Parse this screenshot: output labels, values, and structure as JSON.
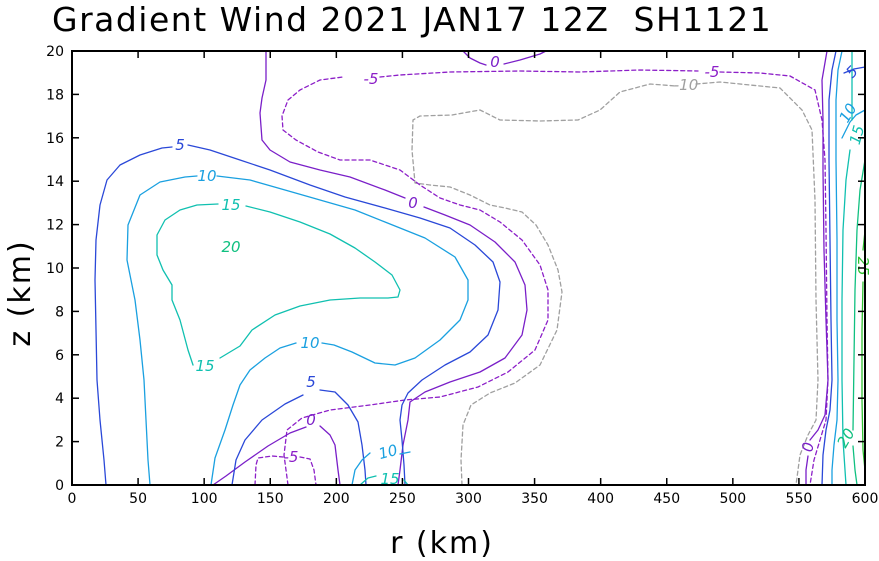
{
  "chart_data": {
    "type": "contour",
    "title": "Gradient Wind 2021 JAN17 12Z  SH1121",
    "xlabel": "r (km)",
    "ylabel": "z (km)",
    "xlim": [
      0,
      600
    ],
    "ylim": [
      0,
      20
    ],
    "xticks": [
      "0",
      "50",
      "100",
      "150",
      "200",
      "250",
      "300",
      "350",
      "400",
      "450",
      "500",
      "550",
      "600"
    ],
    "yticks": [
      "0",
      "2",
      "4",
      "6",
      "8",
      "10",
      "12",
      "14",
      "16",
      "18",
      "20"
    ],
    "contour_levels": [
      {
        "level": -10,
        "color": "#a0a0a0",
        "style": "dashed",
        "labels": [
          "-10"
        ]
      },
      {
        "level": -5,
        "color": "#8c1fc8",
        "style": "dashed",
        "labels": [
          "-5",
          "-5"
        ]
      },
      {
        "level": 0,
        "color": "#7a1fc8",
        "style": "solid",
        "labels": [
          "0",
          "0",
          "0",
          "0"
        ]
      },
      {
        "level": 5,
        "color": "#2a48d8",
        "style": "solid",
        "labels": [
          "5",
          "5",
          "5"
        ]
      },
      {
        "level": 10,
        "color": "#1aa0e0",
        "style": "solid",
        "labels": [
          "10",
          "10",
          "10",
          "10"
        ]
      },
      {
        "level": 15,
        "color": "#10c0b0",
        "style": "solid",
        "labels": [
          "15",
          "15",
          "15",
          "15"
        ]
      },
      {
        "level": 20,
        "color": "#10c080",
        "style": "solid",
        "labels": [
          "20",
          "20"
        ]
      },
      {
        "level": 25,
        "color": "#30c030",
        "style": "solid",
        "labels": [
          "25"
        ]
      }
    ]
  }
}
